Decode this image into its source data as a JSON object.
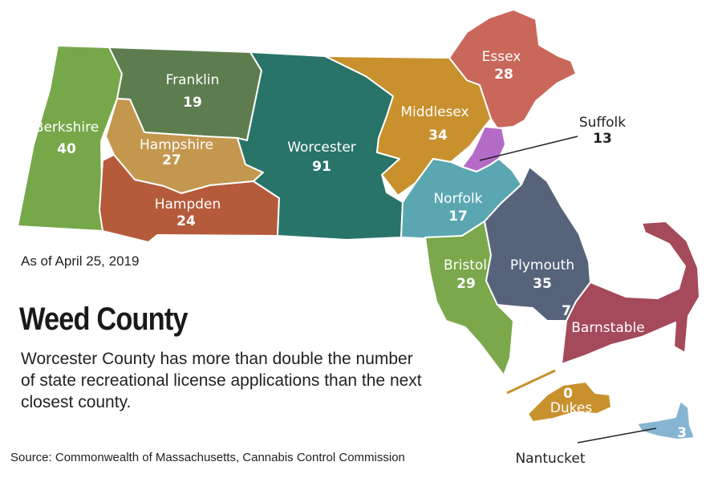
{
  "as_of": "As of April 25, 2019",
  "title": "Weed County",
  "description": "Worcester County has more than double the number of state recreational license applications than the next closest county.",
  "source": "Source: Commonwealth of Massachusetts, Cannabis Control Commission",
  "counties": [
    {
      "id": "berkshire",
      "name": "Berkshire",
      "value": "40",
      "color": "#76a84a"
    },
    {
      "id": "franklin",
      "name": "Franklin",
      "value": "19",
      "color": "#5e7d4e"
    },
    {
      "id": "hampshire",
      "name": "Hampshire",
      "value": "27",
      "color": "#c4974e"
    },
    {
      "id": "hampden",
      "name": "Hampden",
      "value": "24",
      "color": "#b55b3b"
    },
    {
      "id": "worcester",
      "name": "Worcester",
      "value": "91",
      "color": "#287469"
    },
    {
      "id": "middlesex",
      "name": "Middlesex",
      "value": "34",
      "color": "#c8912e"
    },
    {
      "id": "essex",
      "name": "Essex",
      "value": "28",
      "color": "#c9675a"
    },
    {
      "id": "suffolk",
      "name": "Suffolk",
      "value": "13",
      "color": "#b46bc8"
    },
    {
      "id": "norfolk",
      "name": "Norfolk",
      "value": "17",
      "color": "#5aa7b2"
    },
    {
      "id": "bristol",
      "name": "Bristol",
      "value": "29",
      "color": "#7ca84c"
    },
    {
      "id": "plymouth",
      "name": "Plymouth",
      "value": "35",
      "color": "#56637a"
    },
    {
      "id": "barnstable",
      "name": "Barnstable",
      "value": "7",
      "color": "#a44a5a"
    },
    {
      "id": "dukes",
      "name": "Dukes",
      "value": "0",
      "color": "#c8912e"
    },
    {
      "id": "nantucket",
      "name": "Nantucket",
      "value": "3",
      "color": "#86b5d2"
    }
  ]
}
